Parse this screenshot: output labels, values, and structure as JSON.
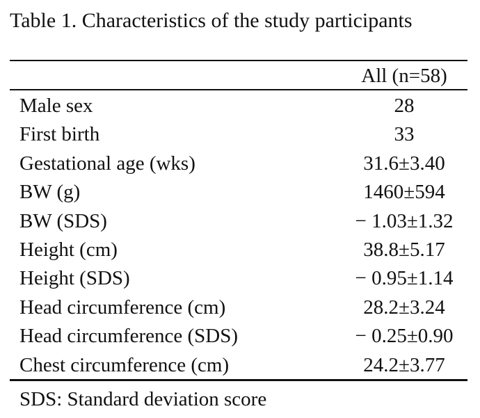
{
  "table": {
    "title": "Table 1. Characteristics of the study participants",
    "column_header": "All (n=58)",
    "rows": [
      {
        "label": "Male sex",
        "value": "28"
      },
      {
        "label": "First birth",
        "value": "33"
      },
      {
        "label": "Gestational age (wks)",
        "value": "31.6±3.40"
      },
      {
        "label": "BW (g)",
        "value": "1460±594"
      },
      {
        "label": "BW (SDS)",
        "value": "− 1.03±1.32"
      },
      {
        "label": "Height (cm)",
        "value": "38.8±5.17"
      },
      {
        "label": "Height (SDS)",
        "value": "− 0.95±1.14"
      },
      {
        "label": "Head circumference (cm)",
        "value": "28.2±3.24"
      },
      {
        "label": "Head circumference (SDS)",
        "value": "− 0.25±0.90"
      },
      {
        "label": "Chest circumference (cm)",
        "value": "24.2±3.77"
      }
    ],
    "footnote": "SDS: Standard deviation score"
  }
}
